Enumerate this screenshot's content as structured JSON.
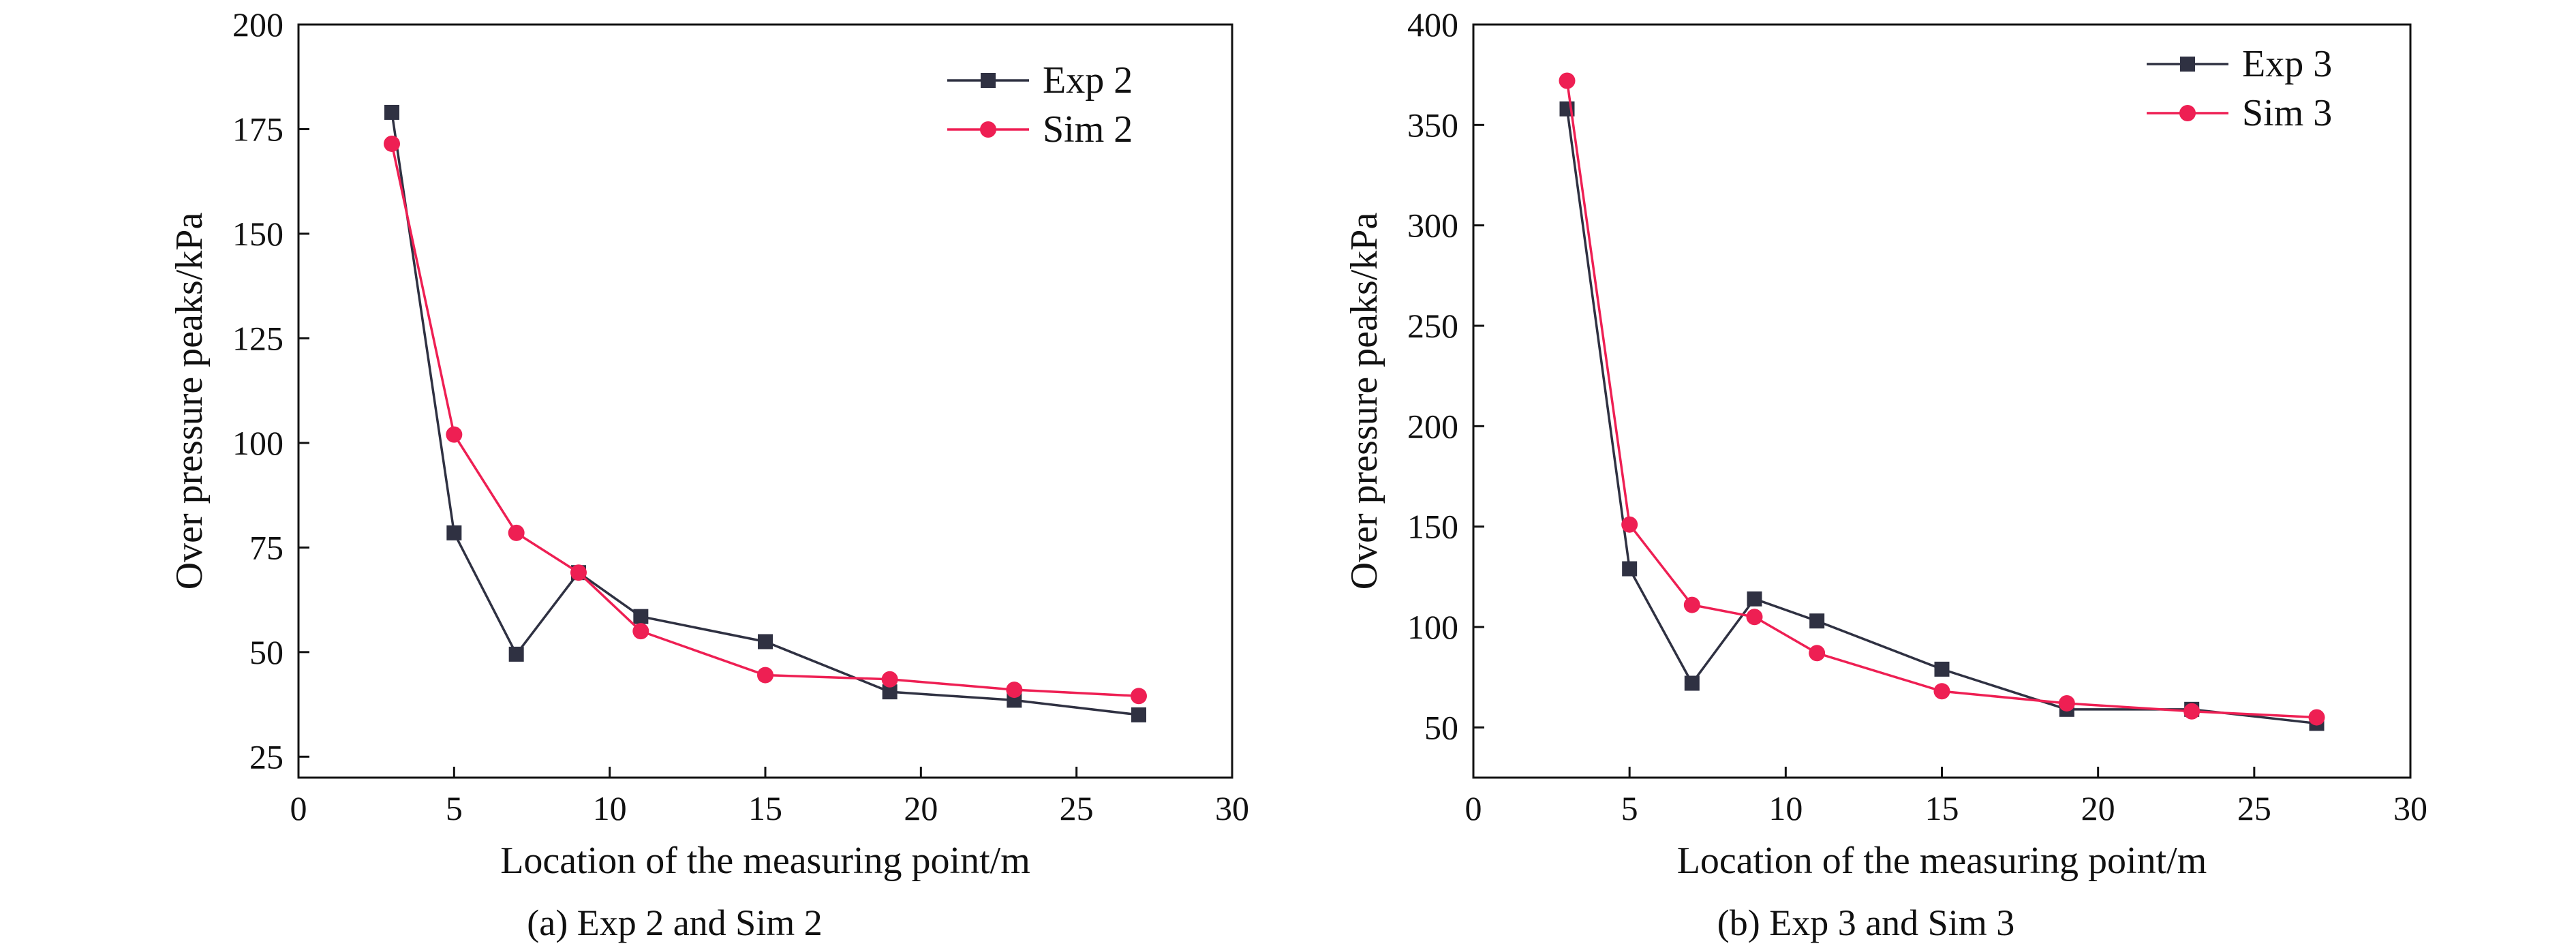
{
  "colors": {
    "exp": "#2f3142",
    "sim": "#ee1f53",
    "axis": "#111111"
  },
  "chart_data": [
    {
      "type": "line",
      "caption": "(a) Exp 2 and Sim 2",
      "xlabel": "Location of the measuring point/m",
      "ylabel": "Over pressure peaks/kPa",
      "xlim": [
        0,
        30
      ],
      "ylim": [
        20,
        200
      ],
      "xticks": [
        "0",
        "5",
        "10",
        "15",
        "20",
        "25",
        "30"
      ],
      "yticks": [
        "25",
        "50",
        "75",
        "100",
        "125",
        "150",
        "175",
        "200"
      ],
      "legend_position": "top-right",
      "series": [
        {
          "name": "Exp 2",
          "marker": "square",
          "x": [
            3,
            5,
            7,
            9,
            11,
            15,
            19,
            23,
            27
          ],
          "y": [
            179,
            78.5,
            49.5,
            69,
            58.5,
            52.5,
            40.5,
            38.5,
            35
          ]
        },
        {
          "name": "Sim 2",
          "marker": "circle",
          "x": [
            3,
            5,
            7,
            9,
            11,
            15,
            19,
            23,
            27
          ],
          "y": [
            171.5,
            102,
            78.5,
            69,
            55,
            44.5,
            43.5,
            41,
            39.5
          ]
        }
      ]
    },
    {
      "type": "line",
      "caption": "(b) Exp 3 and Sim 3",
      "xlabel": "Location of the measuring point/m",
      "ylabel": "Over pressure peaks/kPa",
      "xlim": [
        0,
        30
      ],
      "ylim": [
        25,
        400
      ],
      "xticks": [
        "0",
        "5",
        "10",
        "15",
        "20",
        "25",
        "30"
      ],
      "yticks": [
        "50",
        "100",
        "150",
        "200",
        "250",
        "300",
        "350",
        "400"
      ],
      "legend_position": "top-right",
      "series": [
        {
          "name": "Exp 3",
          "marker": "square",
          "x": [
            3,
            5,
            7,
            9,
            11,
            15,
            19,
            23,
            27
          ],
          "y": [
            358,
            129,
            72,
            114,
            103,
            79,
            59,
            59,
            52
          ]
        },
        {
          "name": "Sim 3",
          "marker": "circle",
          "x": [
            3,
            5,
            7,
            9,
            11,
            15,
            19,
            23,
            27
          ],
          "y": [
            372,
            151,
            111,
            105,
            87,
            68,
            62,
            58,
            55
          ]
        }
      ]
    }
  ]
}
